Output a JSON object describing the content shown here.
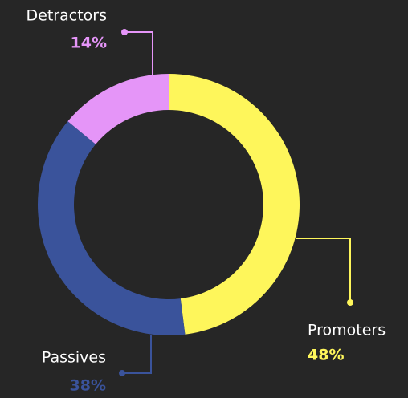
{
  "chart_data": {
    "type": "pie",
    "categories": [
      "Promoters",
      "Passives",
      "Detractors"
    ],
    "values": [
      48,
      38,
      14
    ],
    "value_labels": [
      "48%",
      "38%",
      "14%"
    ],
    "colors": [
      "#fef65b",
      "#3a539b",
      "#e595f8"
    ]
  }
}
